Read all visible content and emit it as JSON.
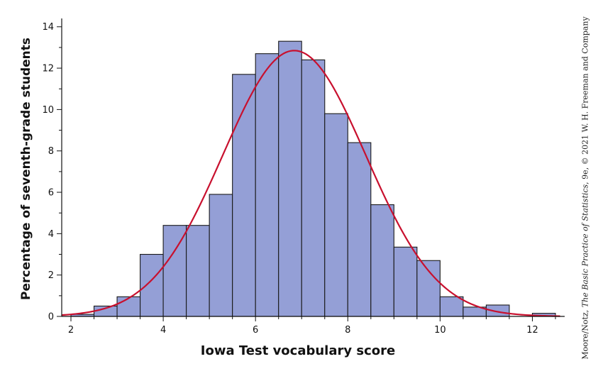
{
  "chart_data": {
    "type": "bar",
    "subtype": "histogram",
    "title": "",
    "xlabel": "Iowa Test vocabulary score",
    "ylabel": "Percentage of seventh-grade students",
    "xlim": [
      1.8,
      12.7
    ],
    "ylim": [
      0,
      14.3
    ],
    "x_ticks": [
      2,
      4,
      6,
      8,
      10,
      12
    ],
    "y_ticks": [
      0,
      2,
      4,
      6,
      8,
      10,
      12,
      14
    ],
    "bin_width": 0.5,
    "bins": [
      {
        "start": 2.0,
        "end": 2.5,
        "value": 0.1
      },
      {
        "start": 2.5,
        "end": 3.0,
        "value": 0.5
      },
      {
        "start": 3.0,
        "end": 3.5,
        "value": 0.95
      },
      {
        "start": 3.5,
        "end": 4.0,
        "value": 3.0
      },
      {
        "start": 4.0,
        "end": 4.5,
        "value": 4.4
      },
      {
        "start": 4.5,
        "end": 5.0,
        "value": 4.4
      },
      {
        "start": 5.0,
        "end": 5.5,
        "value": 5.9
      },
      {
        "start": 5.5,
        "end": 6.0,
        "value": 11.7
      },
      {
        "start": 6.0,
        "end": 6.5,
        "value": 12.7
      },
      {
        "start": 6.5,
        "end": 7.0,
        "value": 13.3
      },
      {
        "start": 7.0,
        "end": 7.5,
        "value": 12.4
      },
      {
        "start": 7.5,
        "end": 8.0,
        "value": 9.8
      },
      {
        "start": 8.0,
        "end": 8.5,
        "value": 8.4
      },
      {
        "start": 8.5,
        "end": 9.0,
        "value": 5.4
      },
      {
        "start": 9.0,
        "end": 9.5,
        "value": 3.35
      },
      {
        "start": 9.5,
        "end": 10.0,
        "value": 2.7
      },
      {
        "start": 10.0,
        "end": 10.5,
        "value": 0.95
      },
      {
        "start": 10.5,
        "end": 11.0,
        "value": 0.45
      },
      {
        "start": 11.0,
        "end": 11.5,
        "value": 0.55
      },
      {
        "start": 11.5,
        "end": 12.0,
        "value": 0.0
      },
      {
        "start": 12.0,
        "end": 12.5,
        "value": 0.15
      }
    ],
    "density_curve": {
      "type": "normal",
      "mean": 6.84,
      "sd": 1.55,
      "peak": 12.85,
      "x_range": [
        1.8,
        12.6
      ]
    },
    "colors": {
      "bar_fill": "#949fd6",
      "bar_stroke": "#1a1a1a",
      "curve": "#c8102e",
      "plot_bg": "#ffffff",
      "page_bg": "#ffffff"
    },
    "grid": false,
    "legend": "none"
  },
  "credit": {
    "prefix": "Moore/Notz, ",
    "book_title": "The Basic Practice of Statistics",
    "suffix": ", 9e, © 2021 W. H. Freeman and Company"
  }
}
